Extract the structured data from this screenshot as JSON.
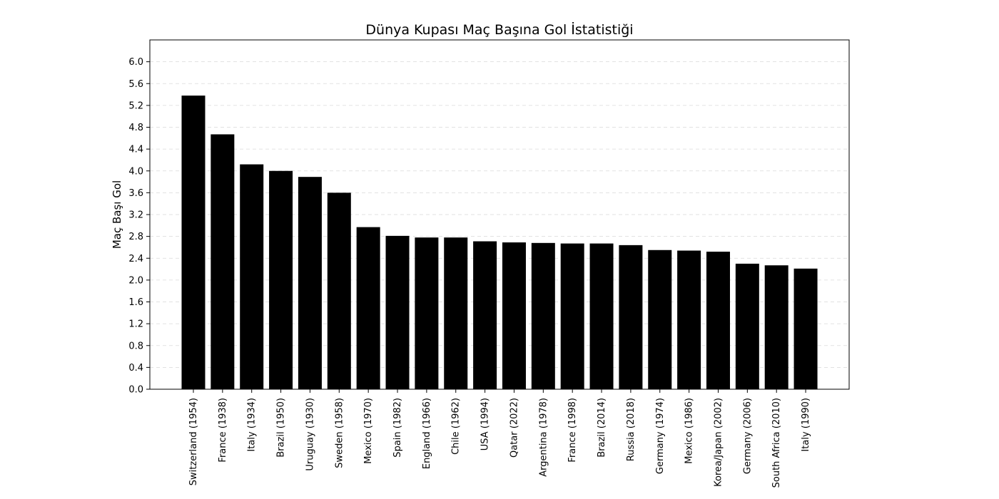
{
  "chart_data": {
    "type": "bar",
    "title": "Dünya Kupası Maç Başına Gol İstatistiği",
    "xlabel": "",
    "ylabel": "Maç Başı Gol",
    "ylim": [
      0,
      6.4
    ],
    "yticks": [
      "0.0",
      "0.4",
      "0.8",
      "1.2",
      "1.6",
      "2.0",
      "2.4",
      "2.8",
      "3.2",
      "3.6",
      "4.0",
      "4.4",
      "4.8",
      "5.2",
      "5.6",
      "6.0"
    ],
    "grid": "horizontal-dashed",
    "bar_color": "#000000",
    "categories": [
      "Switzerland (1954)",
      "France (1938)",
      "Italy (1934)",
      "Brazil (1950)",
      "Uruguay (1930)",
      "Sweden (1958)",
      "Mexico (1970)",
      "Spain (1982)",
      "England (1966)",
      "Chile (1962)",
      "USA (1994)",
      "Qatar (2022)",
      "Argentina (1978)",
      "France (1998)",
      "Brazil (2014)",
      "Russia (2018)",
      "Germany (1974)",
      "Mexico (1986)",
      "Korea/Japan (2002)",
      "Germany (2006)",
      "South Africa (2010)",
      "Italy (1990)"
    ],
    "values": [
      5.38,
      4.67,
      4.12,
      4.0,
      3.89,
      3.6,
      2.97,
      2.81,
      2.78,
      2.78,
      2.71,
      2.69,
      2.68,
      2.67,
      2.67,
      2.64,
      2.55,
      2.54,
      2.52,
      2.3,
      2.27,
      2.21
    ]
  }
}
